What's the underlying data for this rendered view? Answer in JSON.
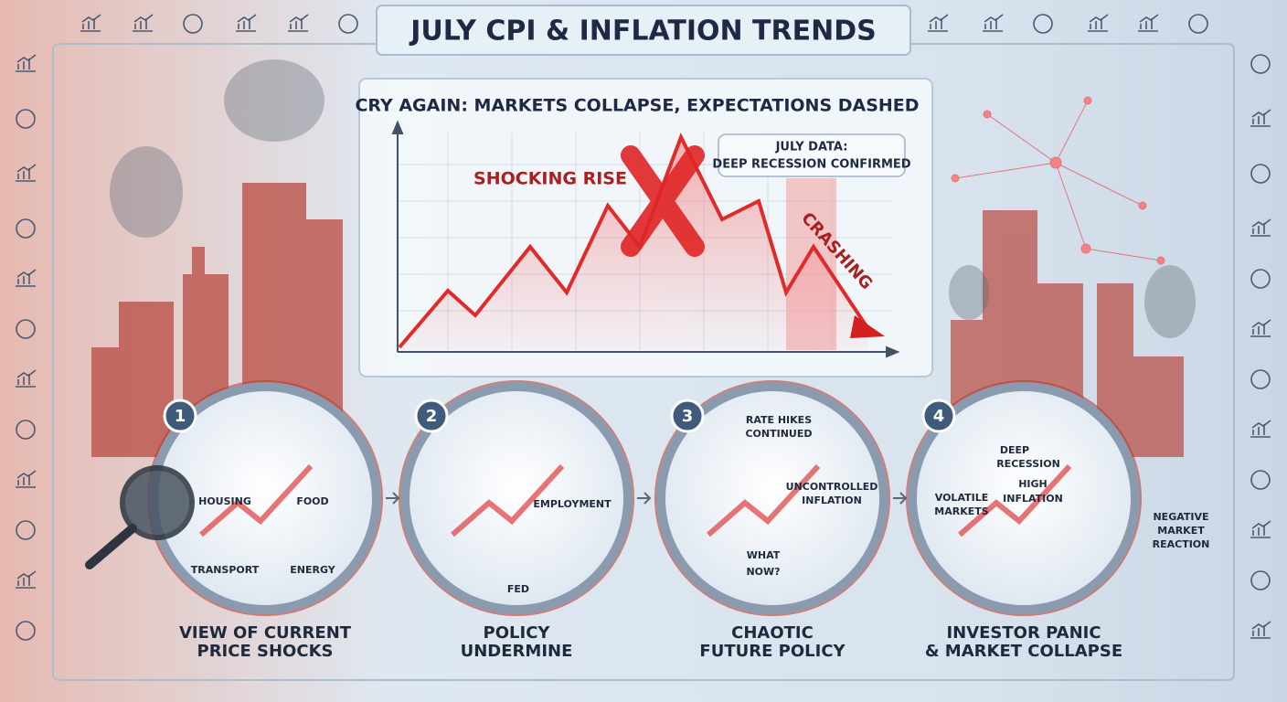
{
  "header": {
    "title": "JULY CPI & INFLATION TRENDS"
  },
  "panel": {
    "title": "CRY AGAIN: MARKETS COLLAPSE, EXPECTATIONS DASHED",
    "rise_label": "SHOCKING RISE",
    "crash_label": "CRASHING",
    "callout": [
      "JULY DATA:",
      "DEEP RECESSION CONFIRMED"
    ]
  },
  "steps": [
    {
      "number": "1",
      "caption": [
        "VIEW OF CURRENT",
        "PRICE SHOCKS"
      ],
      "labels": [
        "HOUSING",
        "FOOD",
        "TRANSPORT",
        "ENERGY"
      ]
    },
    {
      "number": "2",
      "caption": [
        "POLICY",
        "UNDERMINE"
      ],
      "labels": [
        "EMPLOYMENT",
        "FED"
      ]
    },
    {
      "number": "3",
      "caption": [
        "CHAOTIC",
        "FUTURE POLICY"
      ],
      "labels": [
        "RATE HIKES",
        "CONTINUED",
        "UNCONTROLLED",
        "INFLATION",
        "WHAT",
        "NOW?"
      ]
    },
    {
      "number": "4",
      "caption": [
        "INVESTOR PANIC",
        "& MARKET COLLAPSE"
      ],
      "labels": [
        "DEEP",
        "RECESSION",
        "HIGH",
        "INFLATION",
        "VOLATILE",
        "MARKETS"
      ]
    }
  ],
  "side_note": [
    "NEGATIVE",
    "MARKET",
    "REACTION"
  ]
}
